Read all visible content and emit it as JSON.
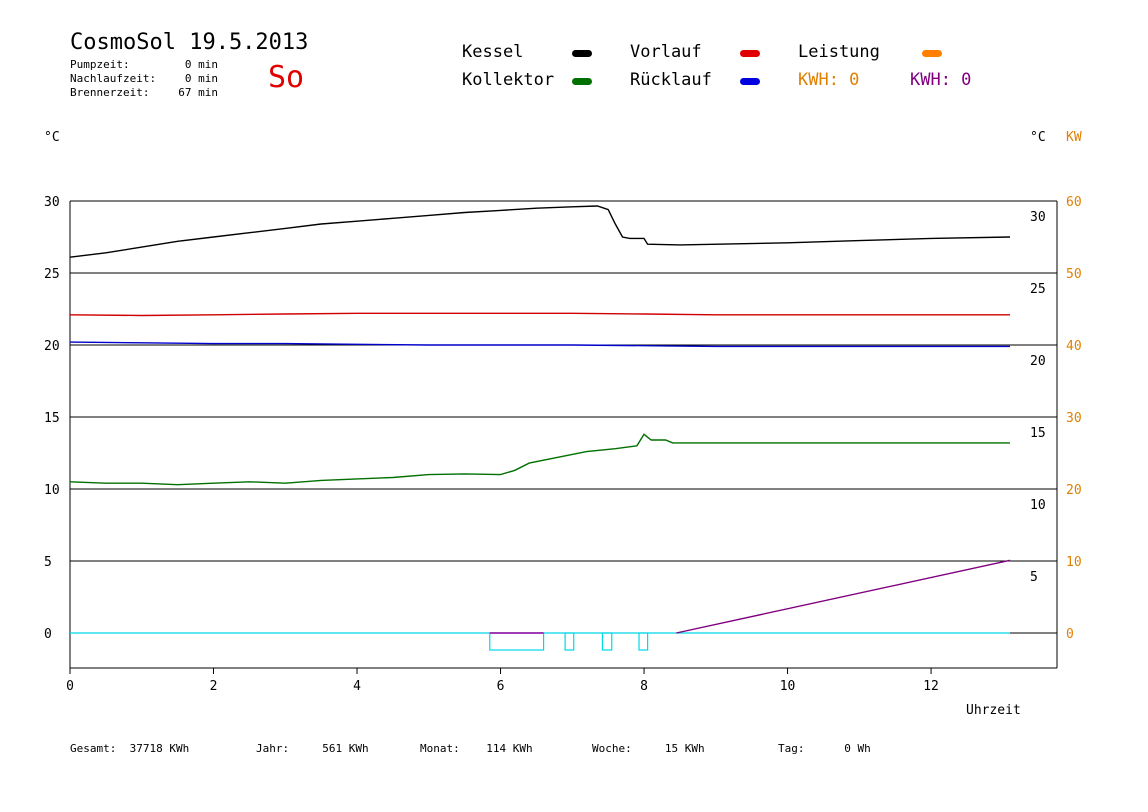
{
  "header": {
    "title": "CosmoSol 19.5.2013",
    "day_label": "So",
    "info": [
      {
        "label": "Pumpzeit:",
        "value": "0 min"
      },
      {
        "label": "Nachlaufzeit:",
        "value": "0 min"
      },
      {
        "label": "Brennerzeit:",
        "value": "67 min"
      }
    ]
  },
  "legend": {
    "kessel": "Kessel",
    "kollektor": "Kollektor",
    "vorlauf": "Vorlauf",
    "ruecklauf": "Rücklauf",
    "leistung": "Leistung",
    "kwh1": "KWH: 0",
    "kwh2": "KWH: 0"
  },
  "units": {
    "left": "°C",
    "right_c": "°C",
    "right_kw": "KW"
  },
  "footer": {
    "gesamt_label": "Gesamt:",
    "gesamt_value": "37718 KWh",
    "jahr_label": "Jahr:",
    "jahr_value": "561 KWh",
    "monat_label": "Monat:",
    "monat_value": "114 KWh",
    "woche_label": "Woche:",
    "woche_value": "15 KWh",
    "tag_label": "Tag:",
    "tag_value": "0 Wh"
  },
  "chart_data": {
    "type": "line",
    "xlabel": "Uhrzeit",
    "xlim": [
      0,
      13.8
    ],
    "ylim": [
      -2.5,
      31
    ],
    "x_ticks": [
      0,
      2,
      4,
      6,
      8,
      10,
      12
    ],
    "y_ticks_left": [
      "30",
      "25",
      "20",
      "15",
      "10",
      "5",
      "0"
    ],
    "y_ticks_right_c": [
      "30",
      "25",
      "20",
      "15",
      "10",
      "5"
    ],
    "y_ticks_right_kw": [
      "60",
      "50",
      "40",
      "30",
      "20",
      "10",
      "0"
    ],
    "grid_lines_y": [
      30,
      25,
      20,
      15,
      10,
      5,
      0
    ],
    "series": [
      {
        "name": "Kessel",
        "color": "#000000",
        "points": [
          [
            0,
            26.1
          ],
          [
            0.5,
            26.4
          ],
          [
            1,
            26.8
          ],
          [
            1.5,
            27.2
          ],
          [
            2,
            27.5
          ],
          [
            2.5,
            27.8
          ],
          [
            3,
            28.1
          ],
          [
            3.5,
            28.4
          ],
          [
            4,
            28.6
          ],
          [
            4.5,
            28.8
          ],
          [
            5,
            29.0
          ],
          [
            5.5,
            29.2
          ],
          [
            6,
            29.35
          ],
          [
            6.5,
            29.5
          ],
          [
            7,
            29.6
          ],
          [
            7.35,
            29.65
          ],
          [
            7.5,
            29.4
          ],
          [
            7.6,
            28.4
          ],
          [
            7.7,
            27.5
          ],
          [
            7.8,
            27.4
          ],
          [
            8.0,
            27.4
          ],
          [
            8.05,
            27.0
          ],
          [
            8.5,
            26.95
          ],
          [
            10,
            27.1
          ],
          [
            11,
            27.25
          ],
          [
            12,
            27.4
          ],
          [
            13.1,
            27.5
          ]
        ]
      },
      {
        "name": "Vorlauf",
        "color": "#d00000",
        "points": [
          [
            0,
            22.1
          ],
          [
            1,
            22.05
          ],
          [
            2,
            22.1
          ],
          [
            3,
            22.15
          ],
          [
            4,
            22.2
          ],
          [
            5,
            22.2
          ],
          [
            6,
            22.2
          ],
          [
            7,
            22.2
          ],
          [
            8,
            22.15
          ],
          [
            9,
            22.1
          ],
          [
            13.1,
            22.1
          ]
        ]
      },
      {
        "name": "Rücklauf",
        "color": "#0000cc",
        "points": [
          [
            0,
            20.2
          ],
          [
            1,
            20.15
          ],
          [
            2,
            20.1
          ],
          [
            3,
            20.1
          ],
          [
            4,
            20.05
          ],
          [
            5,
            20.0
          ],
          [
            6,
            20.0
          ],
          [
            7,
            20.0
          ],
          [
            8,
            19.95
          ],
          [
            9,
            19.9
          ],
          [
            13.1,
            19.9
          ]
        ]
      },
      {
        "name": "Kollektor",
        "color": "#007000",
        "points": [
          [
            0,
            10.5
          ],
          [
            0.5,
            10.4
          ],
          [
            1,
            10.4
          ],
          [
            1.5,
            10.3
          ],
          [
            2,
            10.4
          ],
          [
            2.5,
            10.5
          ],
          [
            3,
            10.4
          ],
          [
            3.5,
            10.6
          ],
          [
            4,
            10.7
          ],
          [
            4.5,
            10.8
          ],
          [
            5,
            11.0
          ],
          [
            5.5,
            11.05
          ],
          [
            6,
            11.0
          ],
          [
            6.2,
            11.3
          ],
          [
            6.4,
            11.8
          ],
          [
            6.8,
            12.2
          ],
          [
            7.2,
            12.6
          ],
          [
            7.6,
            12.8
          ],
          [
            7.9,
            13.0
          ],
          [
            8.0,
            13.8
          ],
          [
            8.1,
            13.4
          ],
          [
            8.3,
            13.4
          ],
          [
            8.4,
            13.2
          ],
          [
            10,
            13.2
          ],
          [
            13.1,
            13.2
          ]
        ]
      },
      {
        "name": "Leistung",
        "color": "#800080",
        "points": [
          [
            8.45,
            0
          ],
          [
            13.1,
            5.05
          ]
        ]
      }
    ],
    "burner_pulses": [
      [
        5.85,
        6.6
      ],
      [
        6.9,
        7.02
      ],
      [
        7.42,
        7.55
      ],
      [
        7.93,
        8.05
      ]
    ]
  }
}
